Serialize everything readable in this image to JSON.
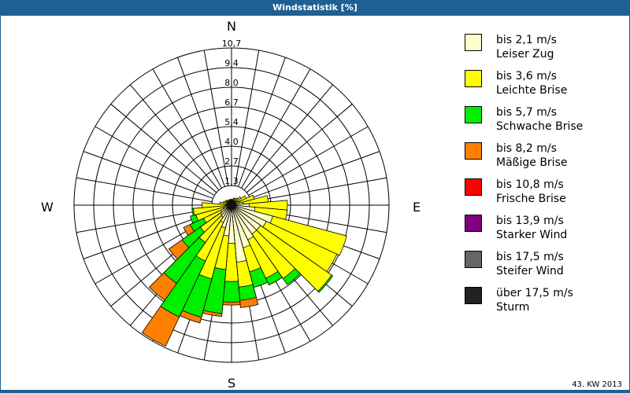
{
  "header": {
    "title": "Windstatistik [%]"
  },
  "footer": {
    "period": "43. KW 2013"
  },
  "compass": {
    "n": "N",
    "e": "E",
    "s": "S",
    "w": "W"
  },
  "chart_data": {
    "type": "wind-rose",
    "title": "Windstatistik [%]",
    "unit": "%",
    "ring_labels": [
      "1,3",
      "2,7",
      "4,0",
      "5,4",
      "6,7",
      "8,0",
      "9,4",
      "10,7"
    ],
    "rmax": 10.7,
    "sector_width_deg": 10,
    "legend_position": "right",
    "categories": [
      "bis 2,1 m/s",
      "bis 3,6 m/s",
      "bis 5,7 m/s",
      "bis 8,2 m/s",
      "bis 10,8 m/s",
      "bis 13,9 m/s",
      "bis 17,5 m/s",
      "über 17,5 m/s"
    ],
    "series": [
      {
        "name": "bis 2,1 m/s",
        "label2": "Leiser Zug",
        "color": "#ffffcc"
      },
      {
        "name": "bis 3,6 m/s",
        "label2": "Leichte Brise",
        "color": "#ffff00"
      },
      {
        "name": "bis 5,7 m/s",
        "label2": "Schwache Brise",
        "color": "#00ee00"
      },
      {
        "name": "bis 8,2 m/s",
        "label2": "Mäßige Brise",
        "color": "#ff8000"
      },
      {
        "name": "bis 10,8 m/s",
        "label2": "Frische Brise",
        "color": "#ff0000"
      },
      {
        "name": "bis 13,9 m/s",
        "label2": "Starker Wind",
        "color": "#800080"
      },
      {
        "name": "bis 17,5 m/s",
        "label2": "Steifer Wind",
        "color": "#666666"
      },
      {
        "name": "über 17,5 m/s",
        "label2": "Sturm",
        "color": "#222222"
      }
    ],
    "directions_deg": [
      0,
      10,
      20,
      30,
      40,
      50,
      60,
      70,
      80,
      90,
      100,
      110,
      120,
      130,
      140,
      150,
      160,
      170,
      180,
      190,
      200,
      210,
      220,
      230,
      240,
      250,
      260,
      270,
      280,
      290,
      300,
      310,
      320,
      330,
      340,
      350
    ],
    "cumulative_values": [
      [
        0.3,
        0.4,
        0,
        0,
        0,
        0,
        0,
        0
      ],
      [
        0.3,
        0.4,
        0,
        0,
        0,
        0,
        0,
        0
      ],
      [
        0.3,
        0.5,
        0,
        0,
        0,
        0,
        0,
        0
      ],
      [
        0.3,
        0.5,
        0,
        0,
        0,
        0,
        0,
        0
      ],
      [
        0.3,
        0.6,
        0,
        0,
        0,
        0,
        0,
        0
      ],
      [
        0.4,
        0.8,
        0,
        0,
        0,
        0,
        0,
        0
      ],
      [
        0.5,
        1.1,
        0,
        0,
        0,
        0,
        0,
        0
      ],
      [
        0.6,
        1.6,
        0,
        0,
        0,
        0,
        0,
        0
      ],
      [
        0.8,
        2.5,
        0,
        0,
        0,
        0,
        0,
        0
      ],
      [
        1.2,
        3.8,
        0,
        0,
        0,
        0,
        0,
        0
      ],
      [
        1.6,
        3.8,
        0,
        0,
        0,
        0,
        0,
        0
      ],
      [
        2.9,
        8.1,
        0,
        0,
        0,
        0,
        0,
        0
      ],
      [
        2.6,
        7.9,
        0,
        0,
        0,
        0,
        0,
        0
      ],
      [
        2.4,
        8.3,
        8.4,
        0,
        0,
        0,
        0,
        0
      ],
      [
        2.4,
        6.1,
        6.6,
        0,
        0,
        0,
        0,
        0
      ],
      [
        2.6,
        5.5,
        6.0,
        0,
        0,
        0,
        0,
        0
      ],
      [
        3.0,
        4.7,
        5.8,
        0,
        0,
        0,
        0,
        0
      ],
      [
        3.9,
        5.6,
        6.5,
        7.0,
        0,
        0,
        0,
        0
      ],
      [
        2.6,
        5.2,
        6.6,
        6.8,
        0,
        0,
        0,
        0
      ],
      [
        2.1,
        4.4,
        7.4,
        7.6,
        0,
        0,
        0,
        0
      ],
      [
        1.6,
        5.2,
        7.9,
        8.3,
        0,
        0,
        0,
        0
      ],
      [
        1.3,
        4.2,
        8.4,
        10.6,
        0,
        0,
        0,
        0
      ],
      [
        1.0,
        3.1,
        6.5,
        7.9,
        0,
        0,
        0,
        0
      ],
      [
        0.9,
        2.6,
        4.1,
        5.2,
        0,
        0,
        0,
        0
      ],
      [
        0.8,
        2.1,
        3.1,
        3.6,
        0,
        0,
        0,
        0
      ],
      [
        0.6,
        2.5,
        2.9,
        0,
        0,
        0,
        0,
        0
      ],
      [
        0.5,
        2.6,
        2.7,
        0,
        0,
        0,
        0,
        0
      ],
      [
        0.4,
        2.0,
        0,
        0,
        0,
        0,
        0,
        0
      ],
      [
        0.3,
        0.8,
        0,
        0,
        0,
        0,
        0,
        0
      ],
      [
        0.3,
        0.6,
        0,
        0,
        0,
        0,
        0,
        0
      ],
      [
        0.3,
        0.5,
        0,
        0,
        0,
        0,
        0,
        0
      ],
      [
        0.3,
        0.5,
        0,
        0,
        0,
        0,
        0,
        0
      ],
      [
        0.3,
        0.4,
        0,
        0,
        0,
        0,
        0,
        0
      ],
      [
        0.3,
        0.4,
        0,
        0,
        0,
        0,
        0,
        0
      ],
      [
        0.3,
        0.4,
        0,
        0,
        0,
        0,
        0,
        0
      ],
      [
        0.3,
        0.4,
        0,
        0,
        0,
        0,
        0,
        0
      ]
    ]
  }
}
